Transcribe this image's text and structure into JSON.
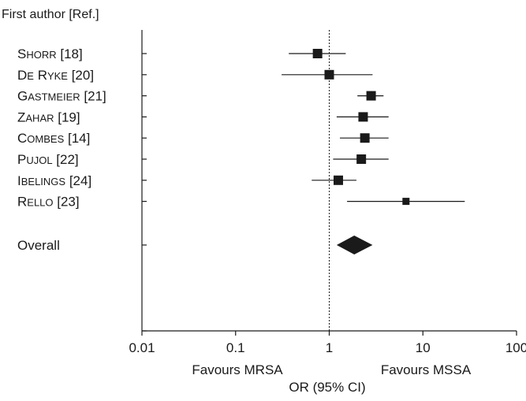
{
  "chart_data": {
    "type": "forest",
    "header": "First author [Ref.]",
    "xlabel": "OR (95% CI)",
    "x_scale": "log",
    "xlim": [
      0.01,
      100
    ],
    "x_ticks": [
      0.01,
      0.1,
      1,
      10,
      100
    ],
    "x_tick_labels": [
      "0.01",
      "0.1",
      "1",
      "10",
      "100"
    ],
    "reference_line": 1,
    "favours_left": "Favours MRSA",
    "favours_right": "Favours MSSA",
    "studies": [
      {
        "name": "Shorr",
        "ref": "[18]",
        "or": 0.75,
        "lower": 0.37,
        "upper": 1.5
      },
      {
        "name": "De Ryke",
        "ref": "[20]",
        "or": 1.0,
        "lower": 0.31,
        "upper": 2.9
      },
      {
        "name": "Gastmeier",
        "ref": "[21]",
        "or": 2.8,
        "lower": 2.0,
        "upper": 3.8
      },
      {
        "name": "Zahar",
        "ref": "[19]",
        "or": 2.3,
        "lower": 1.2,
        "upper": 4.3
      },
      {
        "name": "Combes",
        "ref": "[14]",
        "or": 2.4,
        "lower": 1.3,
        "upper": 4.3
      },
      {
        "name": "Pujol",
        "ref": "[22]",
        "or": 2.2,
        "lower": 1.1,
        "upper": 4.3
      },
      {
        "name": "Ibelings",
        "ref": "[24]",
        "or": 1.25,
        "lower": 0.65,
        "upper": 1.95
      },
      {
        "name": "Rello",
        "ref": "[23]",
        "or": 6.6,
        "lower": 1.55,
        "upper": 28
      }
    ],
    "overall": {
      "name": "Overall",
      "or": 1.85,
      "lower": 1.2,
      "upper": 2.9
    }
  }
}
